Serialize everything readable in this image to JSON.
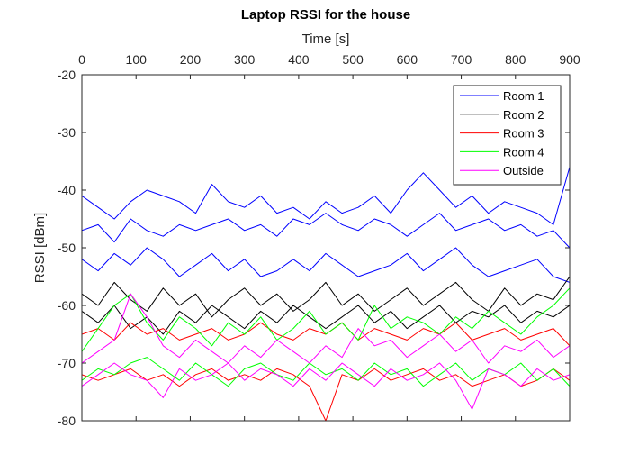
{
  "chart_data": {
    "type": "line",
    "title": "Laptop RSSI for the house",
    "xlabel": "Time [s]",
    "ylabel": "RSSI [dBm]",
    "xlim": [
      0,
      900
    ],
    "ylim": [
      -80,
      -20
    ],
    "x_axis_position": "top",
    "xticks": [
      "0",
      "100",
      "200",
      "300",
      "400",
      "500",
      "600",
      "700",
      "800",
      "900"
    ],
    "yticks": [
      "-20",
      "-30",
      "-40",
      "-50",
      "-60",
      "-70",
      "-80"
    ],
    "grid": false,
    "legend_position": "top-right",
    "x": [
      0,
      30,
      60,
      90,
      120,
      150,
      180,
      210,
      240,
      270,
      300,
      330,
      360,
      390,
      420,
      450,
      480,
      510,
      540,
      570,
      600,
      630,
      660,
      690,
      720,
      750,
      780,
      810,
      840,
      870,
      900
    ],
    "series": [
      {
        "name": "Room 1",
        "color": "#0000ff",
        "traces": [
          [
            -41,
            -43,
            -45,
            -42,
            -40,
            -41,
            -42,
            -44,
            -39,
            -42,
            -43,
            -41,
            -44,
            -43,
            -45,
            -42,
            -44,
            -43,
            -41,
            -44,
            -40,
            -37,
            -40,
            -43,
            -41,
            -44,
            -42,
            -43,
            -44,
            -46,
            -36
          ],
          [
            -47,
            -46,
            -49,
            -45,
            -47,
            -48,
            -46,
            -47,
            -46,
            -45,
            -47,
            -46,
            -48,
            -45,
            -46,
            -44,
            -46,
            -47,
            -45,
            -46,
            -48,
            -46,
            -44,
            -47,
            -46,
            -45,
            -47,
            -46,
            -48,
            -47,
            -50
          ],
          [
            -52,
            -54,
            -51,
            -53,
            -50,
            -52,
            -55,
            -53,
            -51,
            -54,
            -52,
            -55,
            -54,
            -52,
            -54,
            -51,
            -53,
            -55,
            -54,
            -53,
            -51,
            -54,
            -52,
            -50,
            -53,
            -55,
            -54,
            -53,
            -52,
            -55,
            -56
          ]
        ]
      },
      {
        "name": "Room 2",
        "color": "#000000",
        "traces": [
          [
            -58,
            -60,
            -56,
            -59,
            -61,
            -57,
            -60,
            -58,
            -62,
            -59,
            -57,
            -60,
            -58,
            -61,
            -59,
            -56,
            -60,
            -58,
            -61,
            -59,
            -57,
            -60,
            -58,
            -56,
            -59,
            -61,
            -57,
            -60,
            -58,
            -59,
            -55
          ],
          [
            -61,
            -63,
            -60,
            -64,
            -62,
            -65,
            -61,
            -63,
            -60,
            -62,
            -64,
            -61,
            -63,
            -60,
            -62,
            -64,
            -62,
            -60,
            -63,
            -61,
            -64,
            -62,
            -60,
            -63,
            -61,
            -62,
            -60,
            -63,
            -61,
            -62,
            -60
          ]
        ]
      },
      {
        "name": "Room 3",
        "color": "#ff0000",
        "traces": [
          [
            -65,
            -64,
            -66,
            -63,
            -65,
            -64,
            -66,
            -65,
            -64,
            -66,
            -65,
            -63,
            -65,
            -66,
            -64,
            -65,
            -63,
            -66,
            -64,
            -65,
            -66,
            -64,
            -65,
            -63,
            -66,
            -65,
            -64,
            -66,
            -65,
            -64,
            -67
          ],
          [
            -72,
            -73,
            -72,
            -71,
            -73,
            -72,
            -74,
            -72,
            -71,
            -73,
            -72,
            -73,
            -71,
            -72,
            -74,
            -80,
            -72,
            -73,
            -71,
            -73,
            -72,
            -71,
            -73,
            -72,
            -74,
            -73,
            -72,
            -74,
            -73,
            -71,
            -73
          ]
        ]
      },
      {
        "name": "Room 4",
        "color": "#00ff00",
        "traces": [
          [
            -68,
            -64,
            -60,
            -58,
            -63,
            -66,
            -62,
            -64,
            -67,
            -63,
            -65,
            -62,
            -66,
            -64,
            -61,
            -65,
            -63,
            -66,
            -60,
            -64,
            -62,
            -63,
            -65,
            -62,
            -64,
            -61,
            -63,
            -65,
            -62,
            -60,
            -57
          ],
          [
            -73,
            -71,
            -72,
            -70,
            -69,
            -71,
            -73,
            -70,
            -72,
            -74,
            -71,
            -70,
            -72,
            -73,
            -70,
            -72,
            -71,
            -73,
            -70,
            -72,
            -71,
            -74,
            -72,
            -70,
            -73,
            -71,
            -72,
            -70,
            -73,
            -71,
            -74
          ]
        ]
      },
      {
        "name": "Outside",
        "color": "#ff00ff",
        "traces": [
          [
            -70,
            -68,
            -66,
            -58,
            -62,
            -67,
            -69,
            -66,
            -68,
            -70,
            -67,
            -69,
            -66,
            -68,
            -70,
            -67,
            -69,
            -64,
            -67,
            -66,
            -69,
            -67,
            -65,
            -68,
            -66,
            -70,
            -67,
            -68,
            -66,
            -69,
            -67
          ],
          [
            -74,
            -72,
            -70,
            -72,
            -73,
            -76,
            -71,
            -73,
            -72,
            -70,
            -73,
            -71,
            -72,
            -74,
            -71,
            -73,
            -70,
            -72,
            -74,
            -71,
            -73,
            -72,
            -70,
            -73,
            -78,
            -71,
            -72,
            -74,
            -71,
            -73,
            -72
          ]
        ]
      }
    ]
  }
}
